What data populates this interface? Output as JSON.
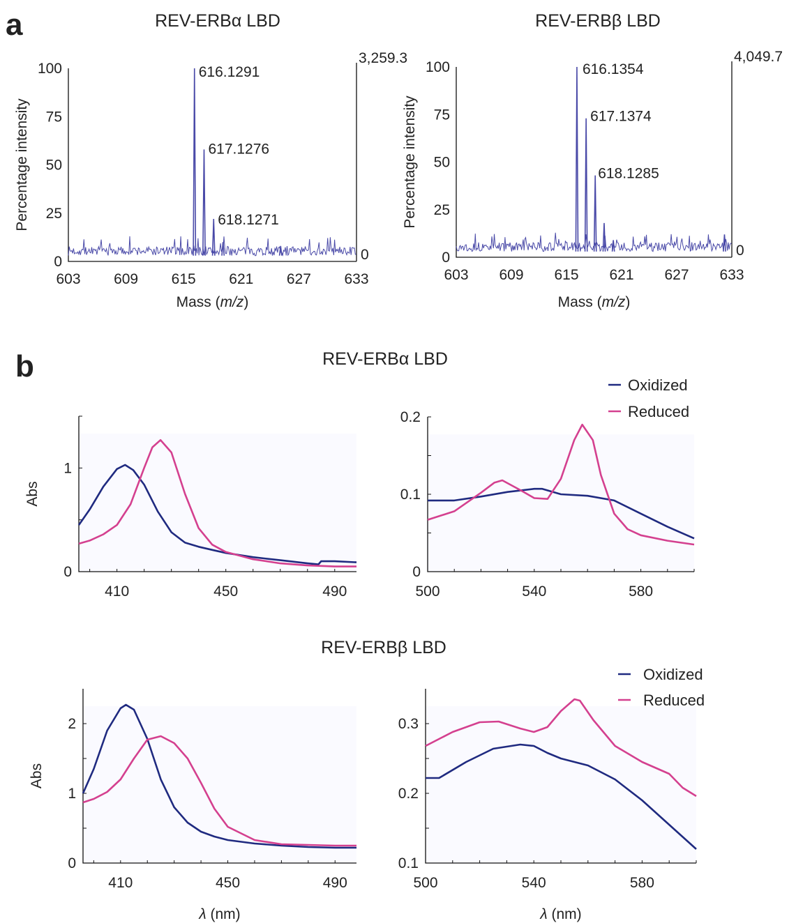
{
  "panels": {
    "a": "a",
    "b": "b"
  },
  "colors": {
    "ms_trace": "#4a4aa8",
    "oxidized": "#1f2a80",
    "reduced": "#d4408f",
    "plot_bg": "#fafaff",
    "axis": "#111111"
  },
  "chart_data": [
    {
      "id": "ms_alpha",
      "type": "line",
      "title": "REV-ERBα LBD",
      "xlabel": "Mass (m/z)",
      "ylabel": "Percentage intensity",
      "xlim": [
        603,
        633
      ],
      "ylim": [
        0,
        100
      ],
      "xticks": [
        "603",
        "609",
        "615",
        "621",
        "627",
        "633"
      ],
      "yticks": [
        "0",
        "25",
        "50",
        "75",
        "100"
      ],
      "right_axis": {
        "top": "3,259.3",
        "bottom": "0"
      },
      "noise": {
        "baseline": 3,
        "amplitude": 6,
        "seed": 7
      },
      "peaks": [
        {
          "x": 616.1291,
          "y": 100,
          "label": "616.1291"
        },
        {
          "x": 617.1276,
          "y": 58,
          "label": "617.1276"
        },
        {
          "x": 618.1271,
          "y": 22,
          "label": "618.1271"
        }
      ],
      "minor_peaks": [
        {
          "x": 619.1,
          "y": 10
        },
        {
          "x": 625.1,
          "y": 8
        }
      ]
    },
    {
      "id": "ms_beta",
      "type": "line",
      "title": "REV-ERBβ LBD",
      "xlabel": "Mass (m/z)",
      "ylabel": "Percentage intensity",
      "xlim": [
        603,
        633
      ],
      "ylim": [
        0,
        100
      ],
      "xticks": [
        "603",
        "609",
        "615",
        "621",
        "627",
        "633"
      ],
      "yticks": [
        "0",
        "25",
        "50",
        "75",
        "100"
      ],
      "right_axis": {
        "top": "4,049.7",
        "bottom": "0"
      },
      "noise": {
        "baseline": 3,
        "amplitude": 6,
        "seed": 13
      },
      "peaks": [
        {
          "x": 616.1354,
          "y": 100,
          "label": "616.1354"
        },
        {
          "x": 617.1374,
          "y": 73,
          "label": "617.1374"
        },
        {
          "x": 618.1285,
          "y": 43,
          "label": "618.1285"
        }
      ],
      "minor_peaks": [
        {
          "x": 619.1,
          "y": 18
        },
        {
          "x": 620.1,
          "y": 9
        },
        {
          "x": 632.2,
          "y": 12
        }
      ]
    },
    {
      "id": "abs_alpha_soret",
      "type": "line",
      "title": "REV-ERBα LBD",
      "ylabel": "Abs",
      "xlim": [
        396,
        498
      ],
      "ylim": [
        0,
        1.5
      ],
      "xticks": [
        410,
        450,
        490
      ],
      "yticks": [
        0,
        1
      ],
      "series": [
        {
          "name": "Oxidized",
          "x": [
            396,
            400,
            405,
            410,
            413,
            416,
            420,
            425,
            430,
            435,
            440,
            445,
            450,
            460,
            470,
            480,
            484,
            485,
            490,
            498
          ],
          "y": [
            0.45,
            0.6,
            0.82,
            0.99,
            1.03,
            0.98,
            0.84,
            0.58,
            0.38,
            0.28,
            0.24,
            0.21,
            0.18,
            0.14,
            0.11,
            0.08,
            0.07,
            0.1,
            0.1,
            0.09
          ]
        },
        {
          "name": "Reduced",
          "x": [
            396,
            400,
            405,
            410,
            415,
            420,
            423,
            426,
            430,
            435,
            440,
            445,
            450,
            460,
            470,
            480,
            490,
            498
          ],
          "y": [
            0.27,
            0.3,
            0.36,
            0.45,
            0.65,
            1.0,
            1.2,
            1.27,
            1.15,
            0.75,
            0.42,
            0.26,
            0.19,
            0.12,
            0.08,
            0.06,
            0.05,
            0.05
          ]
        }
      ]
    },
    {
      "id": "abs_alpha_q",
      "type": "line",
      "title": "",
      "xlim": [
        500,
        600
      ],
      "ylim": [
        0,
        0.2
      ],
      "xticks": [
        500,
        540,
        580
      ],
      "yticks": [
        0,
        0.1,
        0.2
      ],
      "series": [
        {
          "name": "Oxidized",
          "x": [
            500,
            510,
            520,
            530,
            540,
            543,
            550,
            560,
            570,
            580,
            590,
            600
          ],
          "y": [
            0.092,
            0.092,
            0.097,
            0.103,
            0.107,
            0.107,
            0.1,
            0.098,
            0.092,
            0.075,
            0.058,
            0.043
          ]
        },
        {
          "name": "Reduced",
          "x": [
            500,
            510,
            520,
            525,
            528,
            535,
            540,
            545,
            550,
            555,
            558,
            562,
            565,
            570,
            575,
            580,
            590,
            600
          ],
          "y": [
            0.067,
            0.078,
            0.102,
            0.115,
            0.118,
            0.105,
            0.095,
            0.094,
            0.12,
            0.17,
            0.19,
            0.17,
            0.125,
            0.075,
            0.055,
            0.047,
            0.04,
            0.035
          ]
        }
      ],
      "legend": {
        "position": "top-right",
        "entries": [
          "Oxidized",
          "Reduced"
        ]
      }
    },
    {
      "id": "abs_beta_soret",
      "type": "line",
      "title": "REV-ERBβ LBD",
      "ylabel": "Abs",
      "xlabel": "λ (nm)",
      "xlim": [
        396,
        498
      ],
      "ylim": [
        0,
        2.5
      ],
      "xticks": [
        410,
        450,
        490
      ],
      "yticks": [
        0,
        1,
        2
      ],
      "series": [
        {
          "name": "Oxidized",
          "x": [
            396,
            400,
            405,
            410,
            412,
            415,
            420,
            425,
            430,
            435,
            440,
            445,
            450,
            460,
            470,
            480,
            490,
            498
          ],
          "y": [
            1.0,
            1.35,
            1.9,
            2.22,
            2.27,
            2.2,
            1.78,
            1.2,
            0.8,
            0.58,
            0.45,
            0.38,
            0.33,
            0.28,
            0.25,
            0.23,
            0.22,
            0.22
          ]
        },
        {
          "name": "Reduced",
          "x": [
            396,
            400,
            405,
            410,
            415,
            420,
            425,
            430,
            435,
            440,
            445,
            450,
            460,
            470,
            480,
            490,
            498
          ],
          "y": [
            0.87,
            0.92,
            1.02,
            1.2,
            1.5,
            1.77,
            1.82,
            1.72,
            1.5,
            1.15,
            0.78,
            0.52,
            0.33,
            0.27,
            0.26,
            0.25,
            0.25
          ]
        }
      ]
    },
    {
      "id": "abs_beta_q",
      "type": "line",
      "title": "",
      "xlabel": "λ (nm)",
      "xlim": [
        500,
        600
      ],
      "ylim": [
        0.1,
        0.35
      ],
      "xticks": [
        500,
        540,
        580
      ],
      "yticks": [
        0.1,
        0.2,
        0.3
      ],
      "series": [
        {
          "name": "Oxidized",
          "x": [
            500,
            505,
            515,
            525,
            535,
            540,
            545,
            550,
            560,
            570,
            580,
            590,
            600
          ],
          "y": [
            0.222,
            0.222,
            0.245,
            0.264,
            0.27,
            0.268,
            0.258,
            0.25,
            0.24,
            0.22,
            0.19,
            0.155,
            0.12
          ]
        },
        {
          "name": "Reduced",
          "x": [
            500,
            510,
            520,
            527,
            535,
            540,
            545,
            550,
            555,
            557,
            562,
            570,
            580,
            590,
            595,
            600
          ],
          "y": [
            0.268,
            0.288,
            0.302,
            0.303,
            0.293,
            0.288,
            0.295,
            0.318,
            0.335,
            0.333,
            0.305,
            0.268,
            0.245,
            0.228,
            0.208,
            0.196
          ]
        }
      ],
      "legend": {
        "position": "top-right",
        "entries": [
          "Oxidized",
          "Reduced"
        ]
      }
    }
  ]
}
